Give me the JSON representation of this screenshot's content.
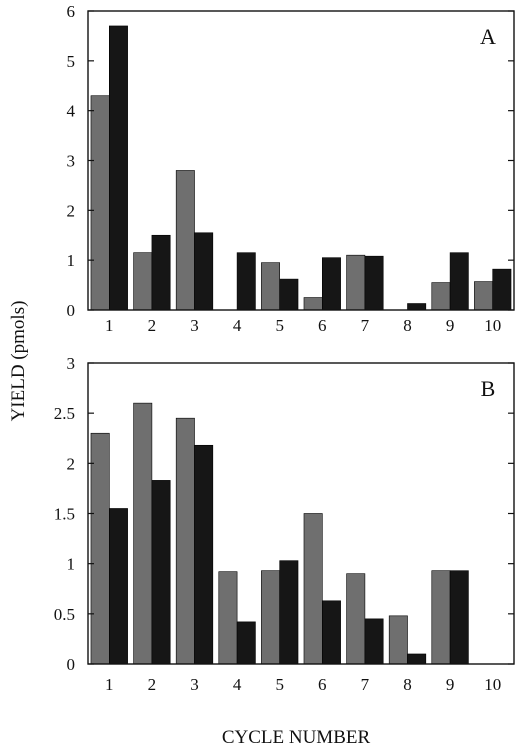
{
  "ylabel": "YIELD (pmols)",
  "xlabel": "CYCLE NUMBER",
  "colors": {
    "series1": "#6f6f6f",
    "series2": "#161616",
    "axis": "#111111"
  },
  "chart_data": [
    {
      "type": "bar",
      "panel_label": "A",
      "categories": [
        "1",
        "2",
        "3",
        "4",
        "5",
        "6",
        "7",
        "8",
        "9",
        "10"
      ],
      "series": [
        {
          "values": [
            4.3,
            1.15,
            2.8,
            0.0,
            0.95,
            0.25,
            1.1,
            0.0,
            0.55,
            0.57
          ]
        },
        {
          "values": [
            5.7,
            1.5,
            1.55,
            1.15,
            0.62,
            1.05,
            1.08,
            0.13,
            1.15,
            0.82
          ]
        }
      ],
      "ylim": [
        0,
        6
      ],
      "yticks": [
        0,
        1,
        2,
        3,
        4,
        5,
        6
      ],
      "ytick_labels": [
        "0",
        "1",
        "2",
        "3",
        "4",
        "5",
        "6"
      ],
      "grid": false
    },
    {
      "type": "bar",
      "panel_label": "B",
      "categories": [
        "1",
        "2",
        "3",
        "4",
        "5",
        "6",
        "7",
        "8",
        "9",
        "10"
      ],
      "series": [
        {
          "values": [
            2.3,
            2.6,
            2.45,
            0.92,
            0.93,
            1.5,
            0.9,
            0.48,
            0.93,
            0.0
          ]
        },
        {
          "values": [
            1.55,
            1.83,
            2.18,
            0.42,
            1.03,
            0.63,
            0.45,
            0.1,
            0.93,
            0.0
          ]
        }
      ],
      "ylim": [
        0,
        3
      ],
      "yticks": [
        0,
        0.5,
        1,
        1.5,
        2,
        2.5,
        3
      ],
      "ytick_labels": [
        "0",
        "0.5",
        "1",
        "1.5",
        "2",
        "2.5",
        "3"
      ],
      "grid": false
    }
  ]
}
